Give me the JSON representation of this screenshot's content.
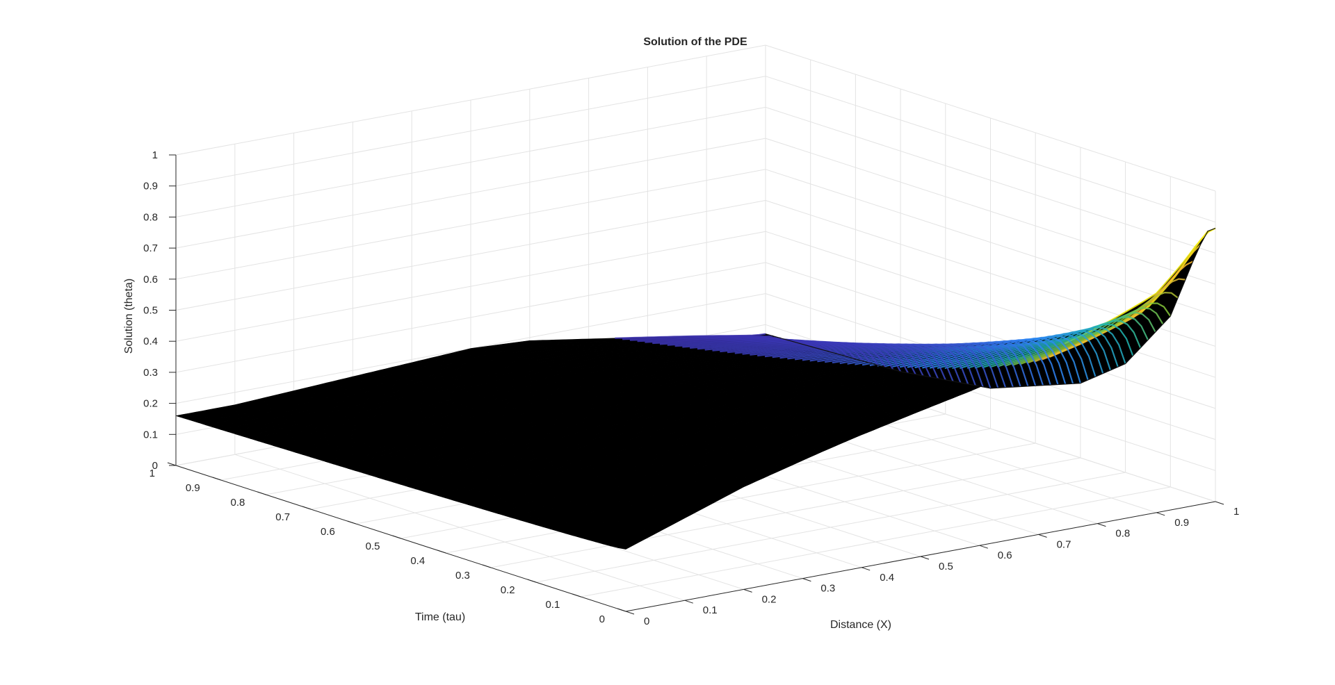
{
  "chart_data": {
    "type": "surface",
    "title": "Solution of the PDE",
    "xlabel": "Distance (X)",
    "ylabel": "Time (tau)",
    "zlabel": "Solution (theta)",
    "xlim": [
      0,
      1
    ],
    "ylim": [
      0,
      1
    ],
    "zlim": [
      0,
      1
    ],
    "x_ticks": [
      "0",
      "0.1",
      "0.2",
      "0.3",
      "0.4",
      "0.5",
      "0.6",
      "0.7",
      "0.8",
      "0.9",
      "1"
    ],
    "y_ticks": [
      "0",
      "0.1",
      "0.2",
      "0.3",
      "0.4",
      "0.5",
      "0.6",
      "0.7",
      "0.8",
      "0.9",
      "1"
    ],
    "z_ticks": [
      "0",
      "0.1",
      "0.2",
      "0.3",
      "0.4",
      "0.5",
      "0.6",
      "0.7",
      "0.8",
      "0.9",
      "1"
    ],
    "grid": true,
    "colormap": "parula",
    "colormap_stops": [
      "#3e26a8",
      "#2e87f7",
      "#1fb8b0",
      "#8bc832",
      "#f9b030",
      "#f9fb0e"
    ],
    "edge_color": "#000000",
    "series": [
      {
        "boundary_x1_profile": {
          "tau": [
            0,
            0.02,
            0.05,
            0.1,
            0.2,
            0.3,
            0.5,
            0.7,
            1
          ],
          "theta": [
            0.88,
            0.86,
            0.75,
            0.55,
            0.35,
            0.24,
            0.13,
            0.09,
            0.07
          ]
        }
      },
      {
        "boundary_tau0_profile": {
          "x": [
            0,
            0.2,
            0.4,
            0.6,
            0.8,
            0.9,
            0.95,
            1
          ],
          "theta": [
            0.2,
            0.33,
            0.43,
            0.52,
            0.63,
            0.7,
            0.78,
            0.88
          ]
        }
      },
      {
        "boundary_tau1_profile": {
          "x": [
            0,
            0.1,
            0.2,
            0.3,
            0.4,
            0.5,
            0.6,
            0.8,
            1
          ],
          "theta": [
            0.16,
            0.16,
            0.17,
            0.18,
            0.19,
            0.2,
            0.19,
            0.13,
            0.07
          ]
        }
      }
    ]
  }
}
